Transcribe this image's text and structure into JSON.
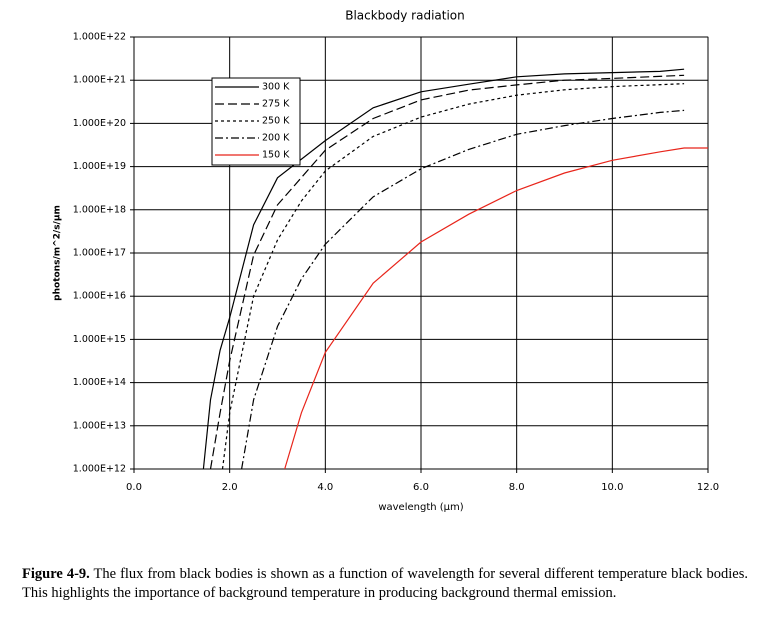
{
  "chart_data": {
    "type": "line",
    "title": "Blackbody radiation",
    "xlabel": "wavelength (µm)",
    "ylabel": "photons/m^2/s/µm",
    "xlim": [
      0,
      12
    ],
    "ylim": [
      1000000000000.0,
      1e+22
    ],
    "yscale": "log",
    "grid": true,
    "legend": "upper left",
    "xticks": [
      {
        "value": 0,
        "label": "0.0"
      },
      {
        "value": 2,
        "label": "2.0"
      },
      {
        "value": 4,
        "label": "4.0"
      },
      {
        "value": 6,
        "label": "6.0"
      },
      {
        "value": 8,
        "label": "8.0"
      },
      {
        "value": 10,
        "label": "10.0"
      },
      {
        "value": 12,
        "label": "12.0"
      }
    ],
    "yticks": [
      {
        "value": 1000000000000.0,
        "label": "1.000E+12"
      },
      {
        "value": 10000000000000.0,
        "label": "1.000E+13"
      },
      {
        "value": 100000000000000.0,
        "label": "1.000E+14"
      },
      {
        "value": 1000000000000000.0,
        "label": "1.000E+15"
      },
      {
        "value": 1e+16,
        "label": "1.000E+16"
      },
      {
        "value": 1e+17,
        "label": "1.000E+17"
      },
      {
        "value": 1e+18,
        "label": "1.000E+18"
      },
      {
        "value": 1e+19,
        "label": "1.000E+19"
      },
      {
        "value": 1e+20,
        "label": "1.000E+20"
      },
      {
        "value": 1e+21,
        "label": "1.000E+21"
      },
      {
        "value": 1e+22,
        "label": "1.000E+22"
      }
    ],
    "series": [
      {
        "name": "300 K",
        "color": "#000000",
        "dash": "none",
        "x": [
          1.45,
          1.6,
          1.8,
          2,
          2.5,
          3,
          4,
          5,
          6,
          7,
          8,
          9,
          10,
          11,
          11.5
        ],
        "values": [
          1000000000000.0,
          40000000000000.0,
          560000000000000.0,
          3200000000000000.0,
          4.5e+17,
          5.5e+18,
          4e+19,
          2.3e+20,
          5.4e+20,
          8.1e+20,
          1.2e+21,
          1.4e+21,
          1.5e+21,
          1.6e+21,
          1.8e+21
        ]
      },
      {
        "name": "275 K",
        "color": "#000000",
        "dash": "9,4",
        "x": [
          1.6,
          1.8,
          2,
          2.5,
          3,
          4,
          5,
          6,
          7,
          8,
          9,
          10,
          11.5
        ],
        "values": [
          1000000000000.0,
          20000000000000.0,
          320000000000000.0,
          8.9e+16,
          1.3e+18,
          2.4e+19,
          1.3e+20,
          3.5e+20,
          5.9e+20,
          7.8e+20,
          1e+21,
          1.1e+21,
          1.3e+21
        ]
      },
      {
        "name": "250 K",
        "color": "#000000",
        "dash": "3,3",
        "x": [
          1.85,
          2,
          2.5,
          3,
          3.5,
          4,
          5,
          6,
          7,
          8,
          9,
          10,
          11.5
        ],
        "values": [
          1000000000000.0,
          20000000000000.0,
          1e+16,
          2e+17,
          1.6e+18,
          7.9e+18,
          5e+19,
          1.4e+20,
          2.8e+20,
          4.5e+20,
          6e+20,
          7.1e+20,
          8.3e+20
        ]
      },
      {
        "name": "200 K",
        "color": "#000000",
        "dash": "8,3,2,3",
        "x": [
          2.25,
          2.5,
          3,
          3.5,
          4,
          5,
          6,
          7,
          8,
          9,
          10,
          11,
          11.5
        ],
        "values": [
          1000000000000.0,
          40000000000000.0,
          2000000000000000.0,
          2.5e+16,
          1.6e+17,
          2e+18,
          8.9e+18,
          2.5e+19,
          5.6e+19,
          8.9e+19,
          1.3e+20,
          1.8e+20,
          2e+20
        ]
      },
      {
        "name": "150 K",
        "color": "#e8251b",
        "dash": "none",
        "x": [
          3.15,
          3.5,
          4,
          5,
          6,
          7,
          8,
          9,
          10,
          11,
          11.5,
          12
        ],
        "values": [
          1000000000000.0,
          20000000000000.0,
          500000000000000.0,
          2e+16,
          1.8e+17,
          7.9e+17,
          2.8e+18,
          7.1e+18,
          1.4e+19,
          2.2e+19,
          2.7e+19,
          2.7e+19
        ]
      }
    ]
  },
  "caption": {
    "label": "Figure 4-9.",
    "text": "The flux from black bodies is shown as a function of wavelength for several different temperature black bodies.  This highlights the importance of background temperature in producing background thermal emission."
  }
}
